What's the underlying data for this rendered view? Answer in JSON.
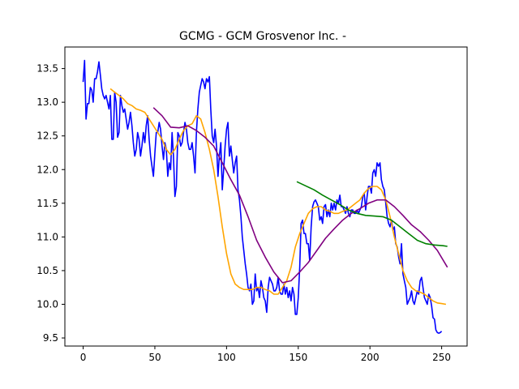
{
  "chart_data": {
    "type": "line",
    "title": "GCMG - GCM Grosvenor Inc. -",
    "xlabel": "",
    "ylabel": "",
    "xlim": [
      -12.75,
      267.75
    ],
    "ylim": [
      9.38,
      13.82
    ],
    "xticks": [
      0,
      50,
      100,
      150,
      200,
      250
    ],
    "yticks": [
      9.5,
      10.0,
      10.5,
      11.0,
      11.5,
      12.0,
      12.5,
      13.0,
      13.5
    ],
    "grid": false,
    "legend": "none",
    "series": [
      {
        "color": "#0000ff",
        "start_x": 0,
        "values": [
          13.3,
          13.62,
          12.75,
          12.98,
          12.98,
          13.22,
          13.18,
          13.0,
          13.35,
          13.35,
          13.45,
          13.6,
          13.4,
          13.2,
          13.1,
          13.05,
          13.1,
          13.0,
          12.9,
          13.1,
          12.45,
          12.45,
          13.15,
          13.0,
          12.48,
          12.55,
          13.1,
          12.95,
          12.85,
          12.9,
          12.75,
          12.6,
          12.7,
          12.85,
          12.65,
          12.4,
          12.2,
          12.3,
          12.55,
          12.45,
          12.2,
          12.35,
          12.55,
          12.4,
          12.65,
          12.8,
          12.45,
          12.2,
          12.05,
          11.9,
          12.25,
          12.55,
          12.55,
          12.7,
          12.6,
          12.35,
          12.15,
          12.4,
          12.3,
          11.9,
          12.1,
          12.0,
          12.55,
          12.2,
          11.6,
          11.75,
          12.55,
          12.5,
          12.35,
          12.4,
          12.55,
          12.7,
          12.6,
          12.4,
          12.3,
          12.3,
          12.4,
          12.2,
          11.95,
          12.55,
          12.9,
          13.15,
          13.25,
          13.35,
          13.3,
          13.2,
          13.35,
          13.3,
          13.38,
          12.9,
          12.5,
          12.4,
          12.6,
          12.35,
          11.9,
          12.2,
          12.4,
          11.7,
          12.0,
          12.35,
          12.6,
          12.7,
          12.2,
          12.35,
          12.15,
          11.95,
          12.1,
          12.2,
          11.7,
          11.55,
          11.3,
          11.0,
          10.8,
          10.6,
          10.45,
          10.25,
          10.2,
          10.3,
          10.0,
          10.05,
          10.45,
          10.2,
          10.25,
          10.1,
          10.35,
          10.25,
          10.1,
          10.05,
          9.88,
          10.25,
          10.4,
          10.35,
          10.3,
          10.2,
          10.2,
          10.25,
          10.4,
          10.2,
          10.15,
          10.15,
          10.3,
          10.15,
          10.25,
          10.1,
          10.2,
          10.05,
          10.25,
          10.15,
          9.85,
          9.85,
          10.1,
          10.55,
          11.2,
          11.25,
          11.05,
          11.05,
          10.9,
          10.9,
          10.65,
          11.15,
          11.45,
          11.52,
          11.55,
          11.5,
          11.45,
          11.25,
          11.3,
          11.2,
          11.45,
          11.48,
          11.3,
          11.4,
          11.3,
          11.5,
          11.4,
          11.5,
          11.4,
          11.55,
          11.5,
          11.62,
          11.45,
          11.45,
          11.4,
          11.35,
          11.45,
          11.35,
          11.3,
          11.4,
          11.4,
          11.35,
          11.35,
          11.4,
          11.35,
          11.4,
          11.45,
          11.6,
          11.65,
          11.4,
          11.6,
          11.75,
          11.75,
          11.65,
          11.95,
          12.0,
          11.9,
          12.1,
          12.05,
          12.1,
          11.85,
          11.75,
          11.7,
          11.5,
          11.3,
          11.2,
          11.15,
          11.25,
          11.1,
          11.15,
          10.9,
          10.85,
          10.7,
          10.6,
          10.9,
          10.45,
          10.35,
          10.25,
          10.0,
          10.05,
          10.1,
          10.2,
          10.05,
          10.0,
          10.1,
          10.2,
          10.15,
          10.35,
          10.4,
          10.25,
          10.1,
          10.05,
          10.0,
          10.15,
          10.1,
          9.98,
          9.8,
          9.78,
          9.62,
          9.58,
          9.57,
          9.58,
          9.6
        ]
      },
      {
        "color": "#ffa500",
        "x": [
          19,
          22,
          25,
          28,
          31,
          34,
          37,
          40,
          43,
          46,
          49,
          52,
          55,
          58,
          61,
          64,
          67,
          70,
          73,
          76,
          79,
          82,
          85,
          88,
          91,
          94,
          97,
          100,
          103,
          106,
          109,
          112,
          115,
          118,
          121,
          124,
          127,
          130,
          133,
          136,
          139,
          142,
          145,
          148,
          151,
          154,
          157,
          160,
          163,
          166,
          169,
          172,
          175,
          178,
          181,
          184,
          187,
          190,
          193,
          196,
          199,
          202,
          205,
          208,
          211,
          214,
          217,
          220,
          223,
          226,
          229,
          232,
          235,
          238,
          241,
          244,
          247,
          250,
          253
        ],
        "values": [
          13.2,
          13.15,
          13.1,
          13.05,
          12.98,
          12.95,
          12.9,
          12.88,
          12.85,
          12.75,
          12.65,
          12.55,
          12.45,
          12.3,
          12.22,
          12.3,
          12.45,
          12.58,
          12.65,
          12.68,
          12.8,
          12.75,
          12.55,
          12.3,
          12.0,
          11.6,
          11.15,
          10.75,
          10.45,
          10.3,
          10.25,
          10.22,
          10.22,
          10.22,
          10.25,
          10.25,
          10.22,
          10.2,
          10.15,
          10.15,
          10.25,
          10.35,
          10.55,
          10.85,
          11.05,
          11.2,
          11.35,
          11.42,
          11.45,
          11.45,
          11.4,
          11.38,
          11.35,
          11.35,
          11.38,
          11.4,
          11.45,
          11.5,
          11.55,
          11.65,
          11.72,
          11.75,
          11.75,
          11.7,
          11.55,
          11.3,
          11.0,
          10.75,
          10.5,
          10.35,
          10.25,
          10.2,
          10.18,
          10.15,
          10.1,
          10.05,
          10.02,
          10.01,
          10.0
        ]
      },
      {
        "color": "#800080",
        "x": [
          49,
          55,
          61,
          67,
          73,
          79,
          85,
          91,
          97,
          103,
          109,
          115,
          121,
          127,
          133,
          139,
          145,
          151,
          157,
          163,
          169,
          175,
          181,
          187,
          193,
          199,
          205,
          211,
          217,
          223,
          229,
          235,
          241,
          247,
          254
        ],
        "values": [
          12.92,
          12.8,
          12.63,
          12.62,
          12.65,
          12.58,
          12.48,
          12.35,
          12.1,
          11.85,
          11.62,
          11.3,
          10.95,
          10.7,
          10.48,
          10.32,
          10.35,
          10.48,
          10.62,
          10.8,
          10.98,
          11.12,
          11.25,
          11.35,
          11.42,
          11.5,
          11.55,
          11.55,
          11.45,
          11.32,
          11.18,
          11.08,
          10.95,
          10.8,
          10.55
        ]
      },
      {
        "color": "#008000",
        "x": [
          149,
          155,
          161,
          167,
          173,
          179,
          185,
          191,
          197,
          203,
          209,
          215,
          221,
          227,
          233,
          239,
          245,
          251,
          254
        ],
        "values": [
          11.82,
          11.76,
          11.7,
          11.62,
          11.55,
          11.48,
          11.4,
          11.35,
          11.32,
          11.31,
          11.3,
          11.25,
          11.15,
          11.05,
          10.95,
          10.9,
          10.88,
          10.87,
          10.86
        ]
      }
    ]
  }
}
